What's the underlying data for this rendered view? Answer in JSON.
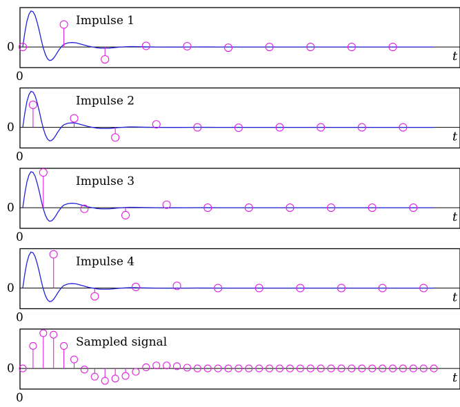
{
  "chart_data": [
    {
      "type": "line",
      "title": "Impulse 1",
      "curve_x": [
        0,
        0.05,
        0.1,
        0.15,
        0.2,
        0.25,
        0.3,
        0.35,
        0.4,
        0.45,
        0.5,
        0.55,
        0.6,
        0.65,
        0.7,
        0.75,
        0.8,
        0.85,
        0.9,
        0.95,
        1,
        1.1,
        1.2,
        1.3,
        1.4,
        1.5,
        1.6,
        1.7,
        1.8,
        1.9,
        2,
        2.1,
        2.2,
        2.3,
        2.4,
        2.5,
        2.6,
        2.7,
        2.8,
        2.9,
        3,
        3.25,
        3.5,
        3.75,
        4,
        4.25,
        4.5,
        4.75,
        5,
        5.5,
        6,
        6.5,
        7,
        7.5,
        8,
        8.5,
        9,
        9.5,
        10
      ],
      "curve_y": [
        0,
        0.38,
        0.68,
        0.87,
        0.96,
        0.94,
        0.84,
        0.66,
        0.44,
        0.19,
        -0.03,
        -0.2,
        -0.31,
        -0.36,
        -0.35,
        -0.3,
        -0.22,
        -0.13,
        -0.05,
        0.02,
        0.07,
        0.11,
        0.12,
        0.11,
        0.08,
        0.05,
        0.02,
        0,
        -0.02,
        -0.03,
        -0.03,
        -0.03,
        -0.02,
        -0.01,
        0,
        0.005,
        0.01,
        0.01,
        0.008,
        0.005,
        0.003,
        0,
        -0.003,
        -0.002,
        0,
        0.002,
        0.001,
        0,
        0,
        0,
        0,
        0,
        0,
        0,
        0,
        0,
        0,
        0,
        0
      ],
      "samples_t": [
        0,
        1,
        2,
        3,
        4,
        5,
        6,
        7,
        8,
        9
      ],
      "samples_y": [
        0,
        0.6,
        -0.33,
        0.03,
        0.02,
        -0.02,
        0,
        0,
        0,
        0
      ],
      "xlim": [
        0,
        10.3
      ],
      "ylim": [
        -0.55,
        1.05
      ],
      "x_tick_label": "0",
      "y_tick_label": "0",
      "xlabel": "t"
    },
    {
      "type": "line",
      "title": "Impulse 2",
      "curve_x": [
        0,
        0.05,
        0.1,
        0.15,
        0.2,
        0.25,
        0.3,
        0.35,
        0.4,
        0.45,
        0.5,
        0.55,
        0.6,
        0.65,
        0.7,
        0.75,
        0.8,
        0.85,
        0.9,
        0.95,
        1,
        1.1,
        1.2,
        1.3,
        1.4,
        1.5,
        1.6,
        1.7,
        1.8,
        1.9,
        2,
        2.1,
        2.2,
        2.3,
        2.4,
        2.5,
        2.6,
        2.7,
        2.8,
        2.9,
        3,
        3.25,
        3.5,
        3.75,
        4,
        4.25,
        4.5,
        4.75,
        5,
        5.5,
        6,
        6.5,
        7,
        7.5,
        8,
        8.5,
        9,
        9.5,
        10
      ],
      "curve_y": [
        0,
        0.38,
        0.68,
        0.87,
        0.96,
        0.94,
        0.84,
        0.66,
        0.44,
        0.19,
        -0.03,
        -0.2,
        -0.31,
        -0.36,
        -0.35,
        -0.3,
        -0.22,
        -0.13,
        -0.05,
        0.02,
        0.07,
        0.11,
        0.12,
        0.11,
        0.08,
        0.05,
        0.02,
        0,
        -0.02,
        -0.03,
        -0.03,
        -0.03,
        -0.02,
        -0.01,
        0,
        0.005,
        0.01,
        0.01,
        0.008,
        0.005,
        0.003,
        0,
        -0.003,
        -0.002,
        0,
        0.002,
        0.001,
        0,
        0,
        0,
        0,
        0,
        0,
        0,
        0,
        0,
        0,
        0,
        0
      ],
      "samples_t": [
        0.25,
        1.25,
        2.25,
        3.25,
        4.25,
        5.25,
        6.25,
        7.25,
        8.25,
        9.25
      ],
      "samples_y": [
        0.6,
        0.24,
        -0.27,
        0.08,
        0,
        -0.01,
        0,
        0,
        0,
        0
      ],
      "xlim": [
        0,
        10.3
      ],
      "ylim": [
        -0.55,
        1.05
      ],
      "x_tick_label": "0",
      "y_tick_label": "0",
      "xlabel": "t"
    },
    {
      "type": "line",
      "title": "Impulse 3",
      "curve_x": [
        0,
        0.05,
        0.1,
        0.15,
        0.2,
        0.25,
        0.3,
        0.35,
        0.4,
        0.45,
        0.5,
        0.55,
        0.6,
        0.65,
        0.7,
        0.75,
        0.8,
        0.85,
        0.9,
        0.95,
        1,
        1.1,
        1.2,
        1.3,
        1.4,
        1.5,
        1.6,
        1.7,
        1.8,
        1.9,
        2,
        2.1,
        2.2,
        2.3,
        2.4,
        2.5,
        2.6,
        2.7,
        2.8,
        2.9,
        3,
        3.25,
        3.5,
        3.75,
        4,
        4.25,
        4.5,
        4.75,
        5,
        5.5,
        6,
        6.5,
        7,
        7.5,
        8,
        8.5,
        9,
        9.5,
        10
      ],
      "curve_y": [
        0,
        0.38,
        0.68,
        0.87,
        0.96,
        0.94,
        0.84,
        0.66,
        0.44,
        0.19,
        -0.03,
        -0.2,
        -0.31,
        -0.36,
        -0.35,
        -0.3,
        -0.22,
        -0.13,
        -0.05,
        0.02,
        0.07,
        0.11,
        0.12,
        0.11,
        0.08,
        0.05,
        0.02,
        0,
        -0.02,
        -0.03,
        -0.03,
        -0.03,
        -0.02,
        -0.01,
        0,
        0.005,
        0.01,
        0.01,
        0.008,
        0.005,
        0.003,
        0,
        -0.003,
        -0.002,
        0,
        0.002,
        0.001,
        0,
        0,
        0,
        0,
        0,
        0,
        0,
        0,
        0,
        0,
        0,
        0
      ],
      "samples_t": [
        0.5,
        1.5,
        2.5,
        3.5,
        4.5,
        5.5,
        6.5,
        7.5,
        8.5,
        9.5
      ],
      "samples_y": [
        0.94,
        -0.03,
        -0.2,
        0.08,
        0,
        0,
        0,
        0,
        0,
        0
      ],
      "xlim": [
        0,
        10.3
      ],
      "ylim": [
        -0.55,
        1.05
      ],
      "x_tick_label": "0",
      "y_tick_label": "0",
      "xlabel": "t"
    },
    {
      "type": "line",
      "title": "Impulse 4",
      "curve_x": [
        0,
        0.05,
        0.1,
        0.15,
        0.2,
        0.25,
        0.3,
        0.35,
        0.4,
        0.45,
        0.5,
        0.55,
        0.6,
        0.65,
        0.7,
        0.75,
        0.8,
        0.85,
        0.9,
        0.95,
        1,
        1.1,
        1.2,
        1.3,
        1.4,
        1.5,
        1.6,
        1.7,
        1.8,
        1.9,
        2,
        2.1,
        2.2,
        2.3,
        2.4,
        2.5,
        2.6,
        2.7,
        2.8,
        2.9,
        3,
        3.25,
        3.5,
        3.75,
        4,
        4.25,
        4.5,
        4.75,
        5,
        5.5,
        6,
        6.5,
        7,
        7.5,
        8,
        8.5,
        9,
        9.5,
        10
      ],
      "curve_y": [
        0,
        0.38,
        0.68,
        0.87,
        0.96,
        0.94,
        0.84,
        0.66,
        0.44,
        0.19,
        -0.03,
        -0.2,
        -0.31,
        -0.36,
        -0.35,
        -0.3,
        -0.22,
        -0.13,
        -0.05,
        0.02,
        0.07,
        0.11,
        0.12,
        0.11,
        0.08,
        0.05,
        0.02,
        0,
        -0.02,
        -0.03,
        -0.03,
        -0.03,
        -0.02,
        -0.01,
        0,
        0.005,
        0.01,
        0.01,
        0.008,
        0.005,
        0.003,
        0,
        -0.003,
        -0.002,
        0,
        0.002,
        0.001,
        0,
        0,
        0,
        0,
        0,
        0,
        0,
        0,
        0,
        0,
        0,
        0
      ],
      "samples_t": [
        0.75,
        1.75,
        2.75,
        3.75,
        4.75,
        5.75,
        6.75,
        7.75,
        8.75,
        9.75
      ],
      "samples_y": [
        0.9,
        -0.22,
        0.03,
        0.06,
        0,
        0,
        0,
        0,
        0,
        0
      ],
      "xlim": [
        0,
        10.3
      ],
      "ylim": [
        -0.55,
        1.05
      ],
      "x_tick_label": "0",
      "y_tick_label": "0",
      "xlabel": "t"
    },
    {
      "type": "scatter",
      "title": "Sampled signal",
      "samples_t": [
        0,
        0.25,
        0.5,
        0.75,
        1,
        1.25,
        1.5,
        1.75,
        2,
        2.25,
        2.5,
        2.75,
        3,
        3.25,
        3.5,
        3.75,
        4,
        4.25,
        4.5,
        4.75,
        5,
        5.25,
        5.5,
        5.75,
        6,
        6.25,
        6.5,
        6.75,
        7,
        7.25,
        7.5,
        7.75,
        8,
        8.25,
        8.5,
        8.75,
        9,
        9.25,
        9.5,
        9.75,
        10
      ],
      "samples_y": [
        0,
        0.6,
        0.94,
        0.9,
        0.6,
        0.24,
        -0.03,
        -0.22,
        -0.33,
        -0.27,
        -0.2,
        -0.09,
        0.03,
        0.08,
        0.08,
        0.06,
        0.02,
        0,
        0,
        0,
        0,
        0,
        0,
        0,
        0,
        0,
        0,
        0,
        0,
        0,
        0,
        0,
        0,
        0,
        0,
        0,
        0,
        0,
        0,
        0,
        0
      ],
      "xlim": [
        0,
        10.3
      ],
      "ylim": [
        -0.55,
        1.05
      ],
      "x_tick_label": "0",
      "y_tick_label": "0",
      "xlabel": "t"
    }
  ],
  "colors": {
    "curve": "#2020d8",
    "samples": "#e020e0",
    "axes": "#000000"
  }
}
